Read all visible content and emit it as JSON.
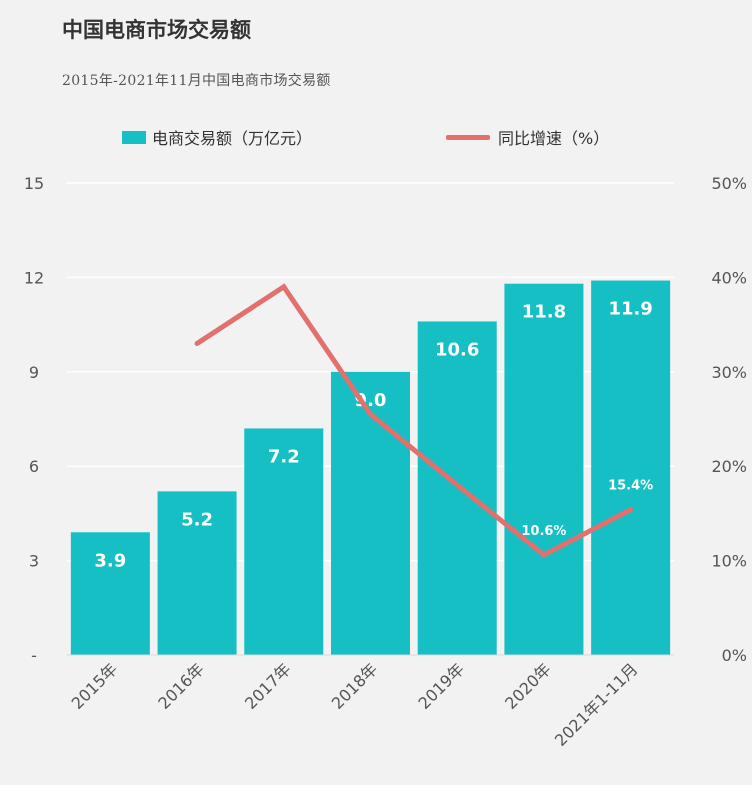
{
  "title": "中国电商市场交易额",
  "subtitle": "2015年-2021年11月中国电商市场交易额",
  "colors": {
    "bar": "#15bfc4",
    "line": "#e2706c",
    "grid": "#ffffff",
    "text": "#555555",
    "label": "#ffffff"
  },
  "chart_data": {
    "type": "bar",
    "categories": [
      "2015年",
      "2016年",
      "2017年",
      "2018年",
      "2019年",
      "2020年",
      "2021年1-11月"
    ],
    "series": [
      {
        "name": "电商交易额（万亿元）",
        "type": "bar",
        "axis": "left",
        "values": [
          3.9,
          5.2,
          7.2,
          9.0,
          10.6,
          11.8,
          11.9
        ],
        "labels": [
          "3.9",
          "5.2",
          "7.2",
          "9.0",
          "10.6",
          "11.8",
          "11.9"
        ]
      },
      {
        "name": "同比增速（%）",
        "type": "line",
        "axis": "right",
        "values": [
          null,
          33,
          39,
          25.5,
          18,
          10.6,
          15.4
        ],
        "labels": [
          "",
          "",
          "",
          "",
          "",
          "10.6%",
          "15.4%"
        ]
      }
    ],
    "y_left": {
      "min": 0,
      "max": 15,
      "ticks": [
        "-",
        "3",
        "6",
        "9",
        "12",
        "15"
      ],
      "tick_values": [
        0,
        3,
        6,
        9,
        12,
        15
      ]
    },
    "y_right": {
      "min": 0,
      "max": 50,
      "ticks": [
        "0%",
        "10%",
        "20%",
        "30%",
        "40%",
        "50%"
      ],
      "tick_values": [
        0,
        10,
        20,
        30,
        40,
        50
      ]
    },
    "grid": true,
    "legend_position": "top"
  }
}
